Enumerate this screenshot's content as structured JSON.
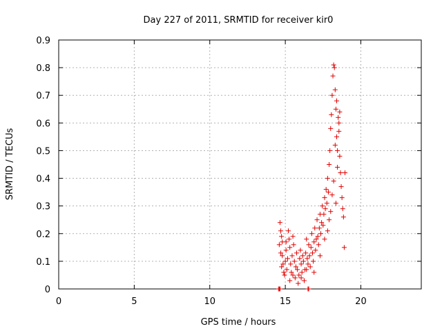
{
  "chart_data": {
    "type": "scatter",
    "title": "Day 227 of 2011, SRMTID for receiver kir0",
    "xlabel": "GPS time / hours",
    "ylabel": "SRMTID / TECUs",
    "xlim": [
      0,
      24
    ],
    "ylim": [
      0,
      0.9
    ],
    "xticks": [
      0,
      5,
      10,
      15,
      20
    ],
    "yticks": [
      0,
      0.1,
      0.2,
      0.3,
      0.4,
      0.5,
      0.6,
      0.7,
      0.8,
      0.9
    ],
    "xtick_labels": [
      "0",
      "5",
      "10",
      "15",
      "20"
    ],
    "ytick_labels": [
      "0",
      "0.1",
      "0.2",
      "0.3",
      "0.4",
      "0.5",
      "0.6",
      "0.7",
      "0.8",
      "0.9"
    ],
    "grid": true,
    "marker": "+",
    "color": "#e00000",
    "series": [
      {
        "name": "SRMTID",
        "points": [
          [
            14.55,
            0.0
          ],
          [
            14.6,
            0.0
          ],
          [
            14.65,
            0.0
          ],
          [
            16.5,
            0.0
          ],
          [
            16.55,
            0.0
          ],
          [
            14.65,
            0.24
          ],
          [
            14.7,
            0.21
          ],
          [
            14.6,
            0.16
          ],
          [
            14.75,
            0.19
          ],
          [
            14.7,
            0.13
          ],
          [
            14.8,
            0.12
          ],
          [
            14.85,
            0.09
          ],
          [
            14.9,
            0.06
          ],
          [
            14.75,
            0.08
          ],
          [
            14.95,
            0.05
          ],
          [
            15.0,
            0.1
          ],
          [
            15.05,
            0.14
          ],
          [
            15.1,
            0.07
          ],
          [
            15.15,
            0.11
          ],
          [
            15.2,
            0.21
          ],
          [
            15.25,
            0.18
          ],
          [
            15.3,
            0.15
          ],
          [
            15.35,
            0.09
          ],
          [
            15.4,
            0.06
          ],
          [
            15.45,
            0.12
          ],
          [
            15.5,
            0.19
          ],
          [
            15.55,
            0.16
          ],
          [
            15.6,
            0.1
          ],
          [
            15.65,
            0.04
          ],
          [
            15.7,
            0.08
          ],
          [
            15.75,
            0.13
          ],
          [
            15.8,
            0.07
          ],
          [
            15.85,
            0.02
          ],
          [
            15.9,
            0.05
          ],
          [
            15.95,
            0.11
          ],
          [
            16.0,
            0.14
          ],
          [
            16.05,
            0.09
          ],
          [
            16.1,
            0.06
          ],
          [
            16.15,
            0.12
          ],
          [
            16.2,
            0.1
          ],
          [
            16.25,
            0.03
          ],
          [
            16.3,
            0.07
          ],
          [
            16.35,
            0.13
          ],
          [
            16.4,
            0.18
          ],
          [
            16.45,
            0.11
          ],
          [
            16.5,
            0.09
          ],
          [
            16.55,
            0.16
          ],
          [
            16.6,
            0.12
          ],
          [
            16.65,
            0.08
          ],
          [
            16.7,
            0.15
          ],
          [
            16.75,
            0.2
          ],
          [
            16.8,
            0.13
          ],
          [
            16.85,
            0.1
          ],
          [
            16.9,
            0.17
          ],
          [
            16.95,
            0.22
          ],
          [
            17.0,
            0.14
          ],
          [
            17.05,
            0.18
          ],
          [
            17.1,
            0.25
          ],
          [
            17.15,
            0.19
          ],
          [
            17.2,
            0.16
          ],
          [
            17.25,
            0.22
          ],
          [
            17.3,
            0.27
          ],
          [
            17.35,
            0.2
          ],
          [
            17.4,
            0.24
          ],
          [
            17.45,
            0.3
          ],
          [
            17.5,
            0.23
          ],
          [
            17.55,
            0.27
          ],
          [
            17.6,
            0.33
          ],
          [
            17.65,
            0.29
          ],
          [
            17.7,
            0.36
          ],
          [
            17.75,
            0.31
          ],
          [
            17.8,
            0.4
          ],
          [
            17.85,
            0.35
          ],
          [
            17.9,
            0.45
          ],
          [
            17.95,
            0.5
          ],
          [
            18.0,
            0.58
          ],
          [
            18.05,
            0.63
          ],
          [
            18.1,
            0.7
          ],
          [
            18.15,
            0.77
          ],
          [
            18.2,
            0.81
          ],
          [
            18.25,
            0.8
          ],
          [
            18.3,
            0.72
          ],
          [
            18.35,
            0.65
          ],
          [
            18.4,
            0.55
          ],
          [
            18.45,
            0.5
          ],
          [
            18.5,
            0.62
          ],
          [
            18.55,
            0.57
          ],
          [
            18.6,
            0.48
          ],
          [
            18.65,
            0.42
          ],
          [
            18.7,
            0.37
          ],
          [
            18.75,
            0.33
          ],
          [
            18.8,
            0.29
          ],
          [
            18.85,
            0.26
          ],
          [
            18.9,
            0.15
          ],
          [
            18.95,
            0.42
          ],
          [
            18.6,
            0.64
          ],
          [
            18.55,
            0.6
          ],
          [
            18.4,
            0.68
          ],
          [
            18.3,
            0.52
          ],
          [
            18.45,
            0.44
          ],
          [
            18.2,
            0.39
          ],
          [
            18.1,
            0.34
          ],
          [
            18.0,
            0.28
          ],
          [
            17.9,
            0.25
          ],
          [
            18.35,
            0.31
          ],
          [
            15.05,
            0.17
          ],
          [
            15.5,
            0.05
          ],
          [
            16.05,
            0.04
          ],
          [
            16.4,
            0.07
          ],
          [
            16.9,
            0.06
          ],
          [
            17.3,
            0.12
          ],
          [
            17.6,
            0.18
          ],
          [
            17.8,
            0.21
          ],
          [
            14.8,
            0.17
          ],
          [
            15.3,
            0.03
          ]
        ]
      }
    ]
  }
}
